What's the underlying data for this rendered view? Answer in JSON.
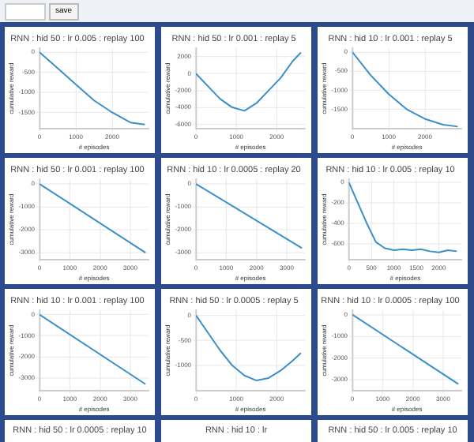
{
  "chart_data": [
    {
      "type": "other",
      "annotations": [
        "save"
      ]
    },
    {
      "type": "line",
      "title": "RNN : hid 50 : lr 0.005 : replay 100",
      "xlabel": "# episodes",
      "ylabel": "cumulative reward",
      "x": [
        0,
        500,
        1000,
        1500,
        2000,
        2500,
        2900
      ],
      "values": [
        0,
        -400,
        -800,
        -1200,
        -1500,
        -1750,
        -1800
      ],
      "color": "#3a8fc8",
      "xlim": [
        0,
        3000
      ],
      "ylim": [
        -1900,
        100
      ],
      "xticks": [
        0,
        1000,
        2000
      ],
      "yticks": [
        0,
        -500,
        -1000,
        -1500
      ],
      "grid": true,
      "legend": false,
      "marker": "none"
    },
    {
      "type": "line",
      "title": "RNN : hid 50 : lr 0.001 : replay 5",
      "xlabel": "# episodes",
      "ylabel": "cumulative reward",
      "x": [
        0,
        300,
        600,
        900,
        1200,
        1500,
        1800,
        2100,
        2400,
        2600
      ],
      "values": [
        0,
        -1500,
        -3000,
        -4000,
        -4400,
        -3500,
        -2000,
        -500,
        1500,
        2500
      ],
      "color": "#3a8fc8",
      "xlim": [
        0,
        2700
      ],
      "ylim": [
        -6500,
        3000
      ],
      "xticks": [
        0,
        1000,
        2000
      ],
      "yticks": [
        2000,
        0,
        -2000,
        -4000,
        -6000
      ],
      "grid": true,
      "legend": false,
      "marker": "none"
    },
    {
      "type": "line",
      "title": "RNN : hid 10 : lr 0.001 : replay 5",
      "xlabel": "# episodes",
      "ylabel": "cumulative reward",
      "x": [
        0,
        500,
        1000,
        1500,
        2000,
        2500,
        2900
      ],
      "values": [
        0,
        -600,
        -1100,
        -1500,
        -1750,
        -1900,
        -1950
      ],
      "color": "#3a8fc8",
      "xlim": [
        0,
        3000
      ],
      "ylim": [
        -2000,
        100
      ],
      "xticks": [
        0,
        1000,
        2000
      ],
      "yticks": [
        0,
        -500,
        -1000,
        -1500
      ],
      "grid": true,
      "legend": false,
      "marker": "none"
    },
    {
      "type": "line",
      "title": "RNN : hid 50 : lr 0.001 : replay 100",
      "xlabel": "# episodes",
      "ylabel": "cumulative reward",
      "x": [
        0,
        3500
      ],
      "values": [
        0,
        -3000
      ],
      "color": "#3a8fc8",
      "xlim": [
        0,
        3600
      ],
      "ylim": [
        -3300,
        200
      ],
      "xticks": [
        0,
        1000,
        2000,
        3000
      ],
      "yticks": [
        0,
        -1000,
        -2000,
        -3000
      ],
      "grid": true,
      "legend": false,
      "marker": "none"
    },
    {
      "type": "line",
      "title": "RNN : hid 10 : lr 0.0005 : replay 20",
      "xlabel": "# episodes",
      "ylabel": "cumulative reward",
      "x": [
        0,
        3500
      ],
      "values": [
        0,
        -2800
      ],
      "color": "#3a8fc8",
      "xlim": [
        0,
        3600
      ],
      "ylim": [
        -3300,
        200
      ],
      "xticks": [
        0,
        1000,
        2000,
        3000
      ],
      "yticks": [
        0,
        -1000,
        -2000,
        -3000
      ],
      "grid": true,
      "legend": false,
      "marker": "none"
    },
    {
      "type": "line",
      "title": "RNN : hid 10 : lr 0.005 : replay 10",
      "xlabel": "# episodes",
      "ylabel": "cumulative reward",
      "x": [
        0,
        200,
        400,
        600,
        800,
        1000,
        1200,
        1400,
        1600,
        1800,
        2000,
        2200,
        2400
      ],
      "values": [
        0,
        -200,
        -400,
        -580,
        -640,
        -660,
        -650,
        -660,
        -650,
        -670,
        -680,
        -660,
        -670
      ],
      "color": "#3a8fc8",
      "xlim": [
        0,
        2500
      ],
      "ylim": [
        -750,
        30
      ],
      "xticks": [
        0,
        500,
        1000,
        1500,
        2000
      ],
      "yticks": [
        0,
        -200,
        -400,
        -600
      ],
      "grid": true,
      "legend": false,
      "marker": "none"
    },
    {
      "type": "line",
      "title": "RNN : hid 10 : lr 0.001 : replay 100",
      "xlabel": "# episodes",
      "ylabel": "cumulative reward",
      "x": [
        0,
        3500
      ],
      "values": [
        0,
        -3300
      ],
      "color": "#3a8fc8",
      "xlim": [
        0,
        3600
      ],
      "ylim": [
        -3600,
        200
      ],
      "xticks": [
        0,
        1000,
        2000,
        3000
      ],
      "yticks": [
        0,
        -1000,
        -2000,
        -3000
      ],
      "grid": true,
      "legend": false,
      "marker": "none"
    },
    {
      "type": "line",
      "title": "RNN : hid 50 : lr 0.0005 : replay 5",
      "xlabel": "# episodes",
      "ylabel": "cumulative reward",
      "x": [
        0,
        300,
        600,
        900,
        1200,
        1500,
        1800,
        2100,
        2400,
        2600
      ],
      "values": [
        0,
        -350,
        -700,
        -1000,
        -1200,
        -1300,
        -1250,
        -1100,
        -900,
        -750
      ],
      "color": "#3a8fc8",
      "xlim": [
        0,
        2700
      ],
      "ylim": [
        -1500,
        100
      ],
      "xticks": [
        0,
        1000,
        2000
      ],
      "yticks": [
        0,
        -500,
        -1000
      ],
      "grid": true,
      "legend": false,
      "marker": "none"
    },
    {
      "type": "line",
      "title": "RNN : hid 10 : lr 0.0005 : replay 100",
      "xlabel": "# episodes",
      "ylabel": "cumulative reward",
      "x": [
        0,
        3500
      ],
      "values": [
        0,
        -3200
      ],
      "color": "#3a8fc8",
      "xlim": [
        0,
        3600
      ],
      "ylim": [
        -3500,
        200
      ],
      "xticks": [
        0,
        1000,
        2000,
        3000
      ],
      "yticks": [
        0,
        -1000,
        -2000,
        -3000
      ],
      "grid": true,
      "legend": false,
      "marker": "none"
    },
    {
      "type": "other",
      "title": "RNN : hid 50 : lr 0.0005 : replay 10"
    },
    {
      "type": "other",
      "title": "RNN : hid 10 : lr"
    },
    {
      "type": "other",
      "title": "RNN : hid 50 : lr 0.005 : replay 10"
    }
  ]
}
